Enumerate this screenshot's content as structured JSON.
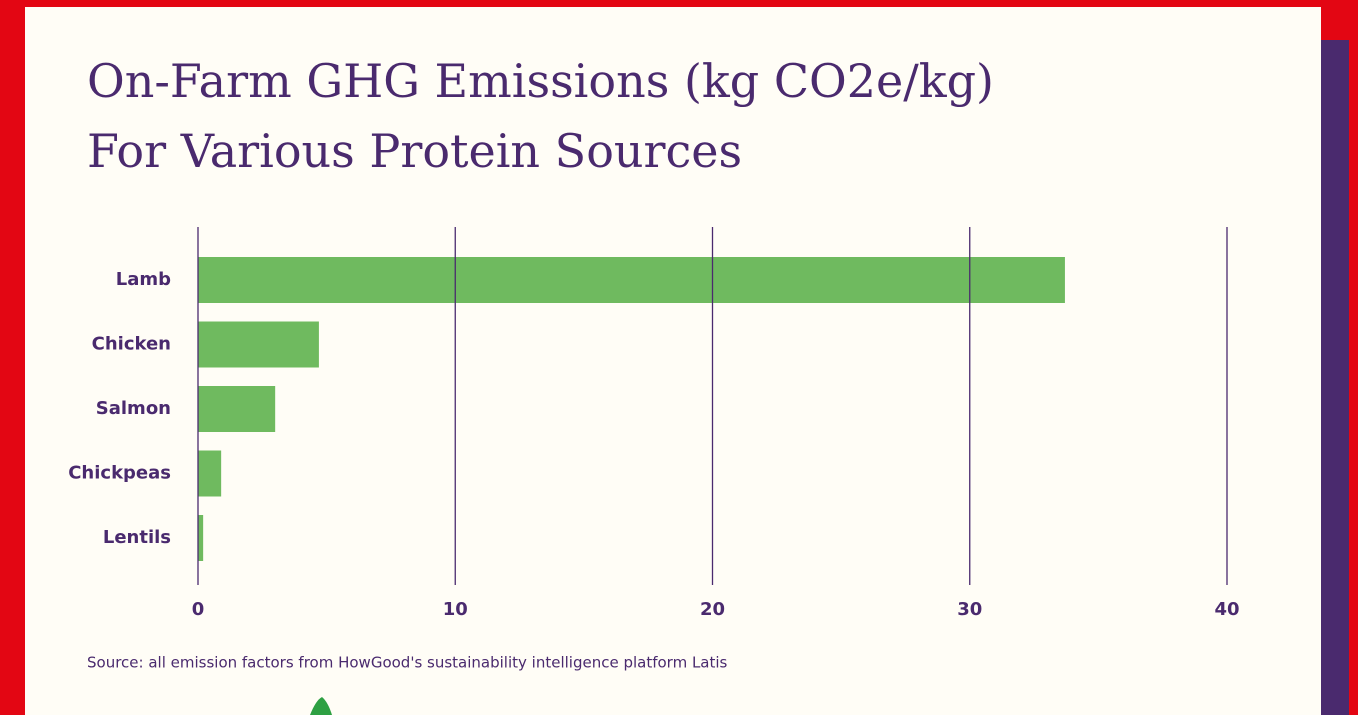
{
  "chart_data": {
    "type": "hbar",
    "title": [
      "On-Farm GHG Emissions (kg CO2e/kg)",
      "For Various Protein Sources"
    ],
    "categories": [
      "Lamb",
      "Chicken",
      "Salmon",
      "Chickpeas",
      "Lentils"
    ],
    "values": [
      33.7,
      4.7,
      3.0,
      0.9,
      0.2
    ],
    "color": "#6fba5f",
    "xlim": [
      0,
      40
    ],
    "xticks": [
      0,
      10,
      20,
      30,
      40
    ],
    "grid": true,
    "source": "Source: all emission factors from HowGood's sustainability intelligence platform Latis"
  }
}
